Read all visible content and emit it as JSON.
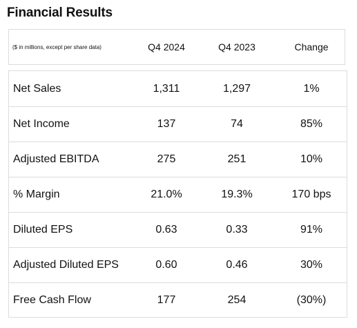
{
  "title": "Financial Results",
  "header": {
    "note": "($ in millions, except per share data)",
    "col1": "Q4 2024",
    "col2": "Q4 2023",
    "col3": "Change"
  },
  "rows": [
    {
      "label": "Net Sales",
      "q4_2024": "1,311",
      "q4_2023": "1,297",
      "change": "1%"
    },
    {
      "label": "Net Income",
      "q4_2024": "137",
      "q4_2023": "74",
      "change": "85%"
    },
    {
      "label": "Adjusted EBITDA",
      "q4_2024": "275",
      "q4_2023": "251",
      "change": "10%"
    },
    {
      "label": "% Margin",
      "q4_2024": "21.0%",
      "q4_2023": "19.3%",
      "change": "170 bps"
    },
    {
      "label": "Diluted EPS",
      "q4_2024": "0.63",
      "q4_2023": "0.33",
      "change": "91%"
    },
    {
      "label": "Adjusted Diluted EPS",
      "q4_2024": "0.60",
      "q4_2023": "0.46",
      "change": "30%"
    },
    {
      "label": "Free Cash Flow",
      "q4_2024": "177",
      "q4_2023": "254",
      "change": "(30%)"
    }
  ]
}
